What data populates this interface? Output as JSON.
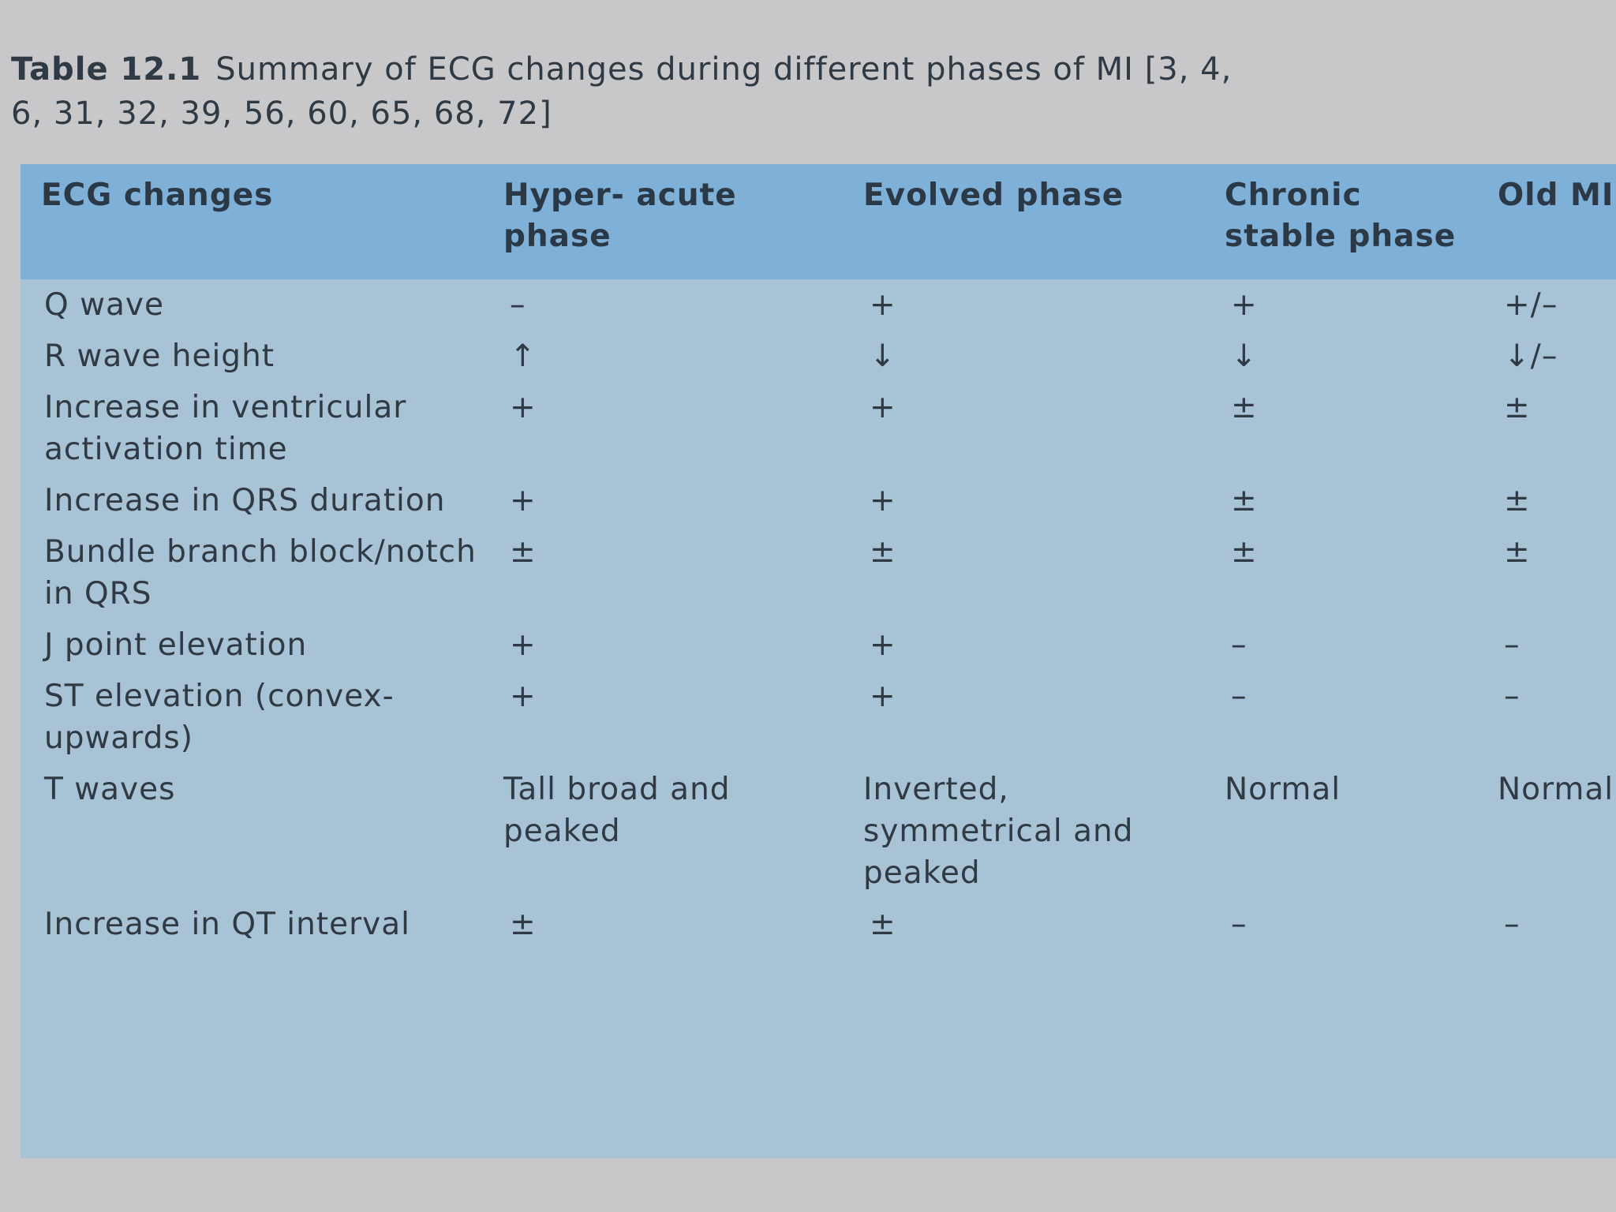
{
  "caption": {
    "label": "Table 12.1",
    "text": [
      "Summary of ECG changes during different phases of MI [3, 4,",
      "6, 31, 32, 39, 56, 60, 65, 68, 72]"
    ]
  },
  "table": {
    "header": [
      "ECG changes",
      "Hyper- acute phase",
      "Evolved phase",
      "Chronic stable phase",
      "Old MI"
    ],
    "rows": [
      [
        "Q wave",
        "–",
        "+",
        "+",
        "+/–"
      ],
      [
        "R wave height",
        "↑",
        "↓",
        "↓",
        "↓/–"
      ],
      [
        "Increase in ventricular activation time",
        "+",
        "+",
        "±",
        "±"
      ],
      [
        "Increase in QRS duration",
        "+",
        "+",
        "±",
        "±"
      ],
      [
        "Bundle branch block/notch in QRS",
        "±",
        "±",
        "±",
        "±"
      ],
      [
        "J point elevation",
        "+",
        "+",
        "–",
        "–"
      ],
      [
        "ST elevation (convex-upwards)",
        "+",
        "+",
        "–",
        "–"
      ],
      [
        "T waves",
        "Tall broad and peaked",
        "Inverted, symmetrical and peaked",
        "Normal",
        "Normal"
      ],
      [
        "Increase in QT interval",
        "±",
        "±",
        "–",
        "–"
      ]
    ]
  }
}
